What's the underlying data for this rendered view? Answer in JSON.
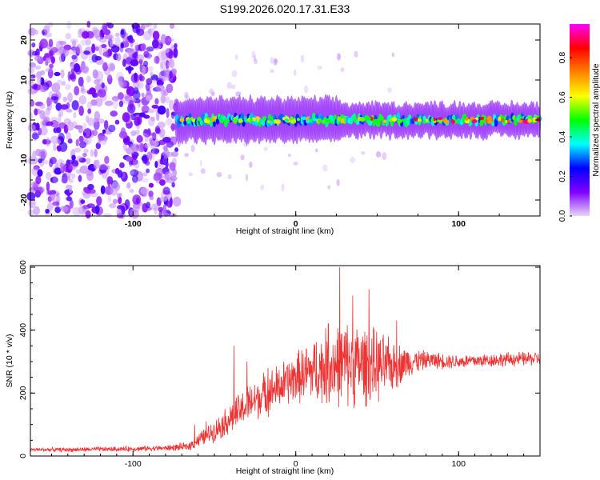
{
  "title": "S199.2026.020.17.31.E33",
  "chart_data": [
    {
      "type": "heatmap",
      "xlabel": "Height of straight line (km)",
      "ylabel": "Frequency (Hz)",
      "xlim": [
        -163,
        150
      ],
      "ylim": [
        -24,
        24
      ],
      "xticks": [
        {
          "value": -100,
          "label": "-100"
        },
        {
          "value": 0,
          "label": "0"
        },
        {
          "value": 100,
          "label": "100"
        }
      ],
      "yticks": [
        {
          "value": 20,
          "label": "20"
        },
        {
          "value": 10,
          "label": "10"
        },
        {
          "value": 0,
          "label": "0"
        },
        {
          "value": -10,
          "label": "-10"
        },
        {
          "value": -20,
          "label": "-20"
        }
      ],
      "noise_region_x": [
        -163,
        -73
      ],
      "signal_band_hz": [
        -2.5,
        2.5
      ],
      "colorbar": {
        "label": "Normalized spectral amplitude",
        "range": [
          0,
          0.97
        ],
        "ticks": [
          {
            "value": 0.0,
            "label": "0.0"
          },
          {
            "value": 0.2,
            "label": "0.2"
          },
          {
            "value": 0.4,
            "label": "0.4"
          },
          {
            "value": 0.6,
            "label": "0.6"
          },
          {
            "value": 0.8,
            "label": "0.8"
          }
        ],
        "colors": [
          "#e8d8f8",
          "#8000ff",
          "#0000ff",
          "#00ffff",
          "#00ff00",
          "#ffff00",
          "#ff8000",
          "#ff0000",
          "#ff00ff"
        ]
      }
    },
    {
      "type": "line",
      "xlabel": "Height of straight line (km)",
      "ylabel": "SNR (10 * v/v)",
      "xlim": [
        -163,
        150
      ],
      "ylim": [
        0,
        605
      ],
      "color": "#ee3333",
      "xticks": [
        {
          "value": -100,
          "label": "-100"
        },
        {
          "value": 0,
          "label": "0"
        },
        {
          "value": 100,
          "label": "100"
        }
      ],
      "yticks": [
        {
          "value": 0,
          "label": "0"
        },
        {
          "value": 200,
          "label": "200"
        },
        {
          "value": 400,
          "label": "400"
        },
        {
          "value": 600,
          "label": "600"
        }
      ],
      "envelope": {
        "x": [
          -163,
          -140,
          -110,
          -80,
          -66,
          -60,
          -50,
          -40,
          -30,
          -20,
          -10,
          0,
          10,
          20,
          30,
          40,
          50,
          60,
          70,
          80,
          100,
          120,
          150
        ],
        "mean": [
          20,
          20,
          22,
          25,
          30,
          50,
          80,
          120,
          160,
          195,
          220,
          250,
          270,
          285,
          295,
          290,
          285,
          285,
          300,
          305,
          300,
          305,
          310
        ],
        "spread": [
          6,
          6,
          7,
          8,
          12,
          20,
          30,
          45,
          55,
          60,
          65,
          70,
          90,
          110,
          120,
          115,
          100,
          70,
          40,
          25,
          20,
          20,
          20
        ]
      },
      "spikes": [
        {
          "x": -62,
          "y": 100
        },
        {
          "x": -55,
          "y": 110
        },
        {
          "x": -38,
          "y": 350
        },
        {
          "x": -30,
          "y": 300
        },
        {
          "x": -17,
          "y": 280
        },
        {
          "x": 20,
          "y": 420
        },
        {
          "x": 27,
          "y": 600
        },
        {
          "x": 35,
          "y": 510
        },
        {
          "x": 45,
          "y": 530
        },
        {
          "x": 62,
          "y": 430
        }
      ]
    }
  ]
}
